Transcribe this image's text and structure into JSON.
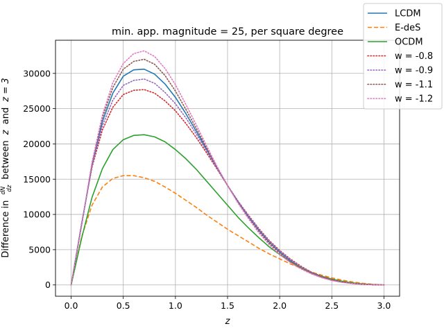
{
  "chart_data": {
    "type": "line",
    "title": "min. app. magnitude = 25, per square degree",
    "xlabel": "z",
    "ylabel_parts": {
      "prefix": "Difference in",
      "frac_num": "dN",
      "frac_den": "dz",
      "between": "between",
      "z_var": "z",
      "and": "and",
      "z_rhs": "z = 3"
    },
    "xlim": [
      -0.15,
      3.15
    ],
    "ylim": [
      -1600,
      34700
    ],
    "xticks": [
      0.0,
      0.5,
      1.0,
      1.5,
      2.0,
      2.5,
      3.0
    ],
    "xtick_labels": [
      "0.0",
      "0.5",
      "1.0",
      "1.5",
      "2.0",
      "2.5",
      "3.0"
    ],
    "yticks": [
      0,
      5000,
      10000,
      15000,
      20000,
      25000,
      30000
    ],
    "ytick_labels": [
      "0",
      "5000",
      "10000",
      "15000",
      "20000",
      "25000",
      "30000"
    ],
    "grid": true,
    "legend_position": "top-right",
    "x": [
      0.0,
      0.1,
      0.2,
      0.3,
      0.4,
      0.5,
      0.6,
      0.7,
      0.8,
      0.9,
      1.0,
      1.1,
      1.2,
      1.3,
      1.4,
      1.5,
      1.6,
      1.7,
      1.8,
      1.9,
      2.0,
      2.1,
      2.2,
      2.3,
      2.4,
      2.5,
      2.6,
      2.7,
      2.8,
      2.9,
      3.0
    ],
    "series": [
      {
        "name": "LCDM",
        "color": "#1f77b4",
        "style": "solid",
        "values": [
          0,
          8500,
          17000,
          23200,
          27200,
          29600,
          30500,
          30600,
          29900,
          28500,
          26600,
          24300,
          21800,
          19200,
          16600,
          14100,
          11800,
          9700,
          7800,
          6100,
          4700,
          3500,
          2500,
          1750,
          1150,
          700,
          420,
          220,
          100,
          30,
          0
        ]
      },
      {
        "name": "E-deS",
        "color": "#ff7f0e",
        "style": "dashed",
        "values": [
          0,
          6800,
          11300,
          13900,
          15100,
          15500,
          15500,
          15200,
          14700,
          13900,
          13000,
          12000,
          11000,
          9900,
          8900,
          7900,
          7000,
          6100,
          5200,
          4400,
          3700,
          3000,
          2400,
          1850,
          1400,
          1000,
          680,
          420,
          230,
          90,
          0
        ]
      },
      {
        "name": "OCDM",
        "color": "#2ca02c",
        "style": "solid",
        "values": [
          0,
          6600,
          12400,
          16500,
          19200,
          20600,
          21200,
          21300,
          21000,
          20300,
          19200,
          17900,
          16400,
          14700,
          13000,
          11300,
          9600,
          8100,
          6700,
          5400,
          4300,
          3300,
          2500,
          1800,
          1250,
          830,
          520,
          290,
          140,
          50,
          0
        ]
      },
      {
        "name": "w = -0.8",
        "color": "#d62728",
        "style": "dotted",
        "values": [
          0,
          8700,
          16700,
          22000,
          25200,
          27000,
          27600,
          27700,
          27200,
          26100,
          24700,
          22900,
          20900,
          18700,
          16400,
          14100,
          11900,
          9900,
          8000,
          6300,
          4900,
          3700,
          2700,
          1850,
          1200,
          750,
          420,
          220,
          100,
          30,
          0
        ]
      },
      {
        "name": "w = -0.9",
        "color": "#9467bd",
        "style": "dotted",
        "values": [
          0,
          8600,
          16900,
          22600,
          26200,
          28300,
          29000,
          29200,
          28600,
          27300,
          25700,
          23700,
          21400,
          19000,
          16500,
          14100,
          11900,
          9800,
          7900,
          6200,
          4800,
          3600,
          2600,
          1800,
          1180,
          720,
          420,
          220,
          100,
          30,
          0
        ]
      },
      {
        "name": "w = -1.1",
        "color": "#8c564b",
        "style": "dotted",
        "values": [
          0,
          8500,
          17200,
          23700,
          28000,
          30600,
          31700,
          32000,
          31300,
          29700,
          27500,
          24900,
          22200,
          19400,
          16700,
          14100,
          11700,
          9500,
          7600,
          5900,
          4500,
          3300,
          2400,
          1650,
          1080,
          660,
          380,
          200,
          90,
          30,
          0
        ]
      },
      {
        "name": "w = -1.2",
        "color": "#e377c2",
        "style": "dotted",
        "values": [
          0,
          8400,
          17400,
          24100,
          28700,
          31400,
          32800,
          33200,
          32400,
          30700,
          28400,
          25600,
          22700,
          19700,
          16800,
          14100,
          11600,
          9400,
          7400,
          5700,
          4300,
          3200,
          2300,
          1600,
          1040,
          630,
          360,
          190,
          90,
          30,
          0
        ]
      }
    ]
  }
}
